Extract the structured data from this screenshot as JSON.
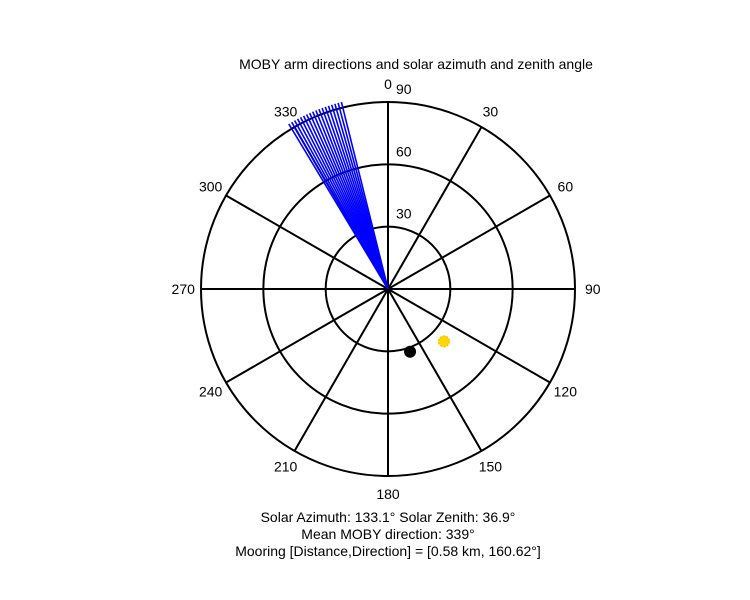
{
  "chart_data": {
    "type": "polar",
    "title": "MOBY arm directions and solar azimuth and zenith angle",
    "angle_convention": "clockwise from north (0 at top)",
    "angle_ticks": [
      "0",
      "30",
      "60",
      "90",
      "120",
      "150",
      "180",
      "210",
      "240",
      "270",
      "300",
      "330"
    ],
    "radial_ticks": [
      "30",
      "60",
      "90"
    ],
    "rmax": 90,
    "arm_directions_deg": [
      329,
      330,
      331,
      332,
      333,
      334,
      335,
      336,
      337,
      338,
      339,
      340,
      341,
      342,
      343,
      344,
      345,
      346
    ],
    "arm_color": "#0000ff",
    "solar_marker": {
      "azimuth_deg": 133.1,
      "zenith_deg": 36.9,
      "color": "#ffd700"
    },
    "mooring_marker": {
      "direction_deg": 160.62,
      "color": "#000000"
    },
    "caption_lines": [
      "Solar Azimuth: 133.1°   Solar Zenith: 36.9°",
      "Mean MOBY direction: 339°",
      "Mooring [Distance,Direction] = [0.58 km, 160.62°]"
    ]
  }
}
